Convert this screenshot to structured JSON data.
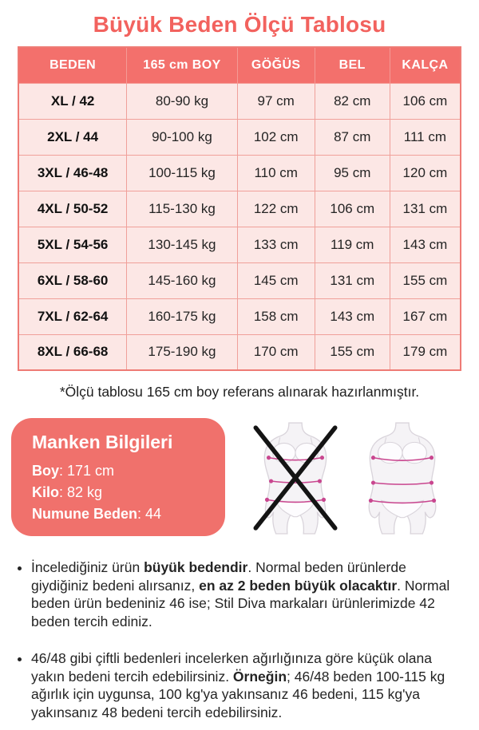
{
  "page_title": "Büyük Beden Ölçü Tablosu",
  "colors": {
    "accent": "#f0716c",
    "title_color": "#f2625e",
    "header_bg": "#f3706c",
    "cell_bg": "#fce7e5",
    "grid_line": "#f0a09a",
    "outer_border": "#ee7b75",
    "text_dark": "#222222",
    "measure_line": "#c9468f"
  },
  "chart_data": {
    "type": "table",
    "title": "Büyük Beden Ölçü Tablosu",
    "columns": [
      "BEDEN",
      "165 cm BOY",
      "GÖĞÜS",
      "BEL",
      "KALÇA"
    ],
    "rows": [
      [
        "XL / 42",
        "80-90 kg",
        "97 cm",
        "82 cm",
        "106 cm"
      ],
      [
        "2XL / 44",
        "90-100 kg",
        "102 cm",
        "87 cm",
        "111 cm"
      ],
      [
        "3XL / 46-48",
        "100-115 kg",
        "110 cm",
        "95 cm",
        "120 cm"
      ],
      [
        "4XL / 50-52",
        "115-130 kg",
        "122 cm",
        "106 cm",
        "131 cm"
      ],
      [
        "5XL / 54-56",
        "130-145 kg",
        "133 cm",
        "119 cm",
        "143 cm"
      ],
      [
        "6XL / 58-60",
        "145-160 kg",
        "145 cm",
        "131 cm",
        "155 cm"
      ],
      [
        "7XL / 62-64",
        "160-175 kg",
        "158 cm",
        "143 cm",
        "167 cm"
      ],
      [
        "8XL / 66-68",
        "175-190 kg",
        "170 cm",
        "155 cm",
        "179 cm"
      ]
    ]
  },
  "footnote": "*Ölçü tablosu 165 cm boy referans alınarak hazırlanmıştır.",
  "model_info": {
    "title": "Manken Bilgileri",
    "lines": [
      {
        "label": "Boy",
        "value": ": 171 cm"
      },
      {
        "label": "Kilo",
        "value": ": 82 kg"
      },
      {
        "label": "Numune Beden",
        "value": ": 44"
      }
    ]
  },
  "figures": [
    {
      "name": "slim-body-figure",
      "crossed": true
    },
    {
      "name": "plus-body-figure",
      "crossed": false
    }
  ],
  "notes": [
    {
      "segments": [
        {
          "text": "İncelediğiniz ürün ",
          "bold": false
        },
        {
          "text": "büyük bedendir",
          "bold": true
        },
        {
          "text": ". Normal beden ürünlerde giydiğiniz bedeni alırsanız, ",
          "bold": false
        },
        {
          "text": "en az 2 beden büyük olacaktır",
          "bold": true
        },
        {
          "text": ". Normal beden ürün bedeniniz 46 ise; Stil Diva markaları ürünlerimizde 42 beden tercih ediniz.",
          "bold": false
        }
      ]
    },
    {
      "segments": [
        {
          "text": "46/48 gibi çiftli bedenleri incelerken ağırlığınıza göre küçük olana yakın bedeni tercih edebilirsiniz. ",
          "bold": false
        },
        {
          "text": "Örneğin",
          "bold": true
        },
        {
          "text": "; 46/48 beden 100-115 kg ağırlık için uygunsa, 100 kg'ya yakınsanız 46 bedeni, 115 kg'ya yakınsanız 48 bedeni tercih edebilirsiniz.",
          "bold": false
        }
      ]
    }
  ]
}
